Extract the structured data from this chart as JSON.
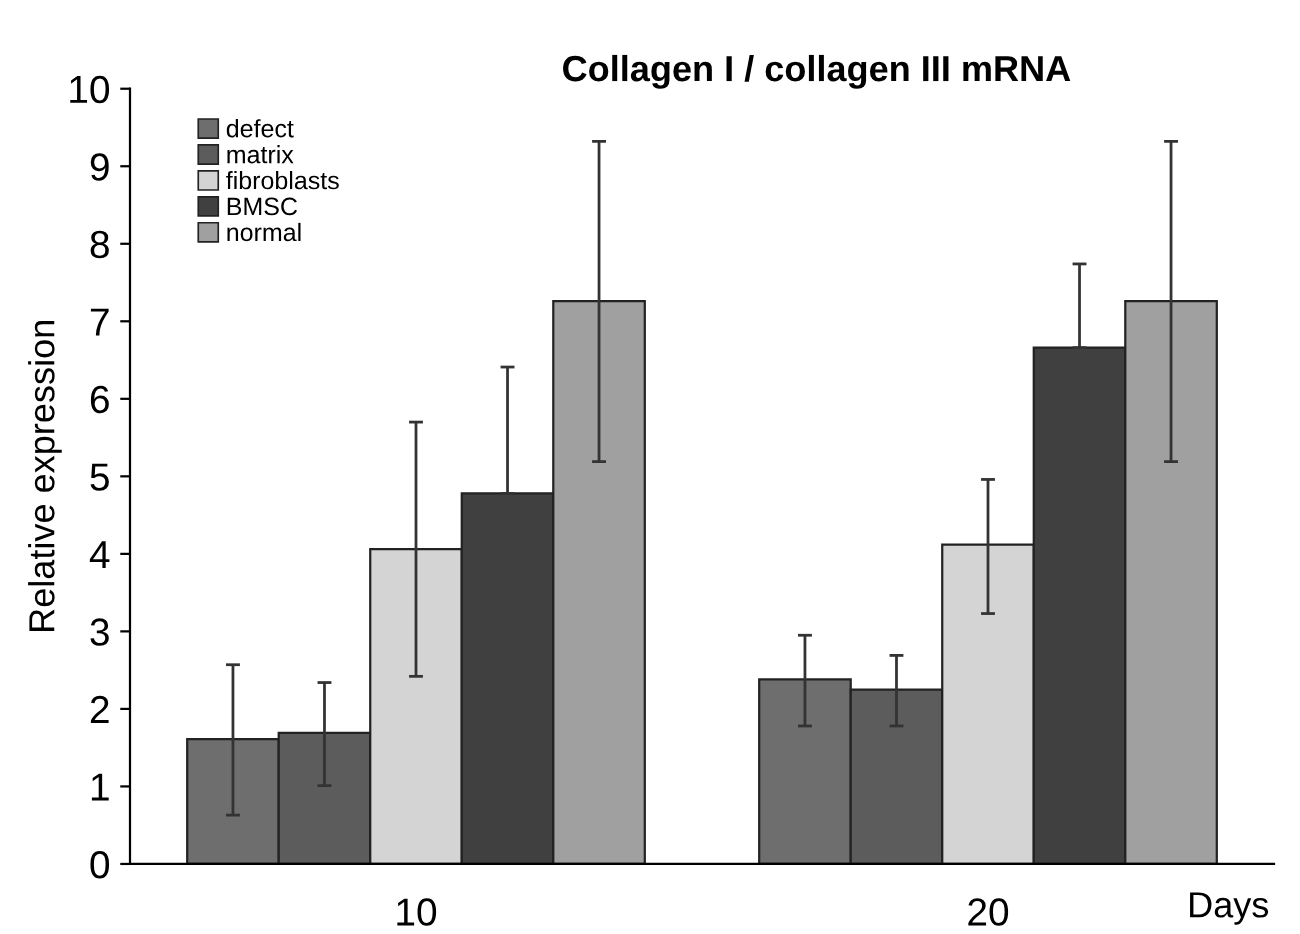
{
  "chart_data": {
    "type": "bar",
    "title": "Collagen I / collagen III mRNA",
    "xlabel": "Days",
    "ylabel": "Relative expression",
    "categories": [
      "10",
      "20"
    ],
    "series": [
      {
        "name": "defect",
        "color": "#6e6e6e",
        "values": [
          1.61,
          2.38
        ],
        "errors": [
          [
            0.63,
            2.57
          ],
          [
            1.78,
            2.95
          ]
        ]
      },
      {
        "name": "matrix",
        "color": "#5c5c5c",
        "values": [
          1.69,
          2.25
        ],
        "errors": [
          [
            1.01,
            2.34
          ],
          [
            1.78,
            2.69
          ]
        ]
      },
      {
        "name": "fibroblasts",
        "color": "#d4d4d4",
        "values": [
          4.06,
          4.12
        ],
        "errors": [
          [
            2.42,
            5.7
          ],
          [
            3.23,
            4.96
          ]
        ]
      },
      {
        "name": "BMSC",
        "color": "#404040",
        "values": [
          4.78,
          6.66
        ],
        "errors": [
          [
            4.78,
            6.41
          ],
          [
            6.66,
            7.74
          ]
        ]
      },
      {
        "name": "normal",
        "color": "#a0a0a0",
        "values": [
          7.26,
          7.26
        ],
        "errors": [
          [
            5.19,
            9.32
          ],
          [
            5.19,
            9.32
          ]
        ]
      }
    ],
    "ylim": [
      0,
      10
    ],
    "yticks": [
      0,
      1,
      2,
      3,
      4,
      5,
      6,
      7,
      8,
      9,
      10
    ],
    "grid": false,
    "legend": "top left"
  }
}
